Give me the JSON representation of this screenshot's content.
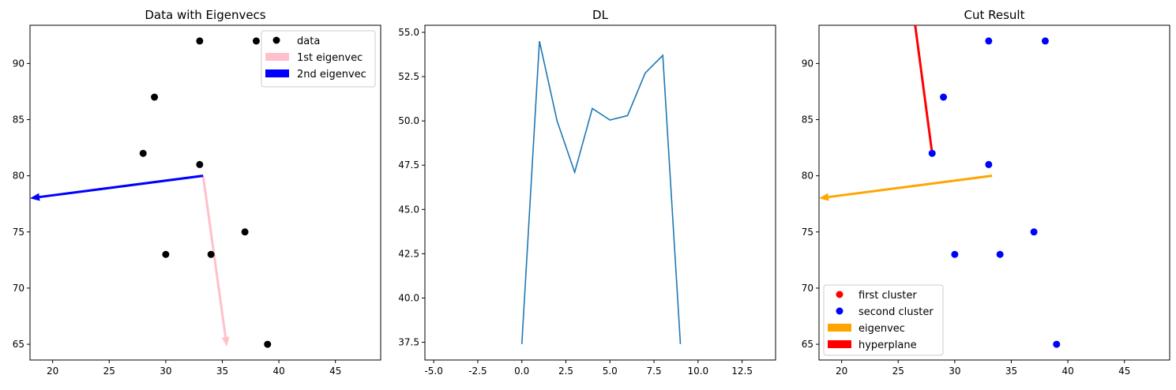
{
  "chart_data": [
    {
      "type": "scatter",
      "title": "Data with Eigenvecs",
      "xlim": [
        18,
        49
      ],
      "ylim": [
        63.6,
        93.4
      ],
      "xticks": [
        20,
        25,
        30,
        35,
        40,
        45
      ],
      "yticks": [
        65,
        70,
        75,
        80,
        85,
        90
      ],
      "series": [
        {
          "name": "data",
          "kind": "points",
          "color": "#000000",
          "points": [
            [
              33,
              92
            ],
            [
              38,
              92
            ],
            [
              29,
              87
            ],
            [
              28,
              82
            ],
            [
              33,
              81
            ],
            [
              37,
              75
            ],
            [
              30,
              73
            ],
            [
              34,
              73
            ],
            [
              39,
              65
            ]
          ]
        }
      ],
      "arrows": [
        {
          "name": "1st eigenvec",
          "color": "#ffc0cb",
          "from": [
            33.3,
            80
          ],
          "to": [
            35.4,
            64.8
          ]
        },
        {
          "name": "2nd eigenvec",
          "color": "#0000ff",
          "from": [
            33.3,
            80
          ],
          "to": [
            18,
            78
          ]
        }
      ],
      "legend": {
        "position": "upper-right",
        "entries": [
          {
            "label": "data",
            "kind": "dot",
            "color": "#000000"
          },
          {
            "label": "1st eigenvec",
            "kind": "patch",
            "color": "#ffc0cb"
          },
          {
            "label": "2nd eigenvec",
            "kind": "patch",
            "color": "#0000ff"
          }
        ]
      }
    },
    {
      "type": "line",
      "title": "DL",
      "xlim": [
        -5.5,
        14.4
      ],
      "ylim": [
        36.5,
        55.4
      ],
      "xticks": [
        "-5.0",
        "-2.5",
        "0.0",
        "2.5",
        "5.0",
        "7.5",
        "10.0",
        "12.5"
      ],
      "xtick_values": [
        -5,
        -2.5,
        0,
        2.5,
        5,
        7.5,
        10,
        12.5
      ],
      "yticks": [
        "37.5",
        "40.0",
        "42.5",
        "45.0",
        "47.5",
        "50.0",
        "52.5",
        "55.0"
      ],
      "ytick_values": [
        37.5,
        40,
        42.5,
        45,
        47.5,
        50,
        52.5,
        55
      ],
      "series": [
        {
          "color": "#1f77b4",
          "x": [
            0,
            1,
            2,
            3,
            4,
            5,
            6,
            7,
            8,
            9
          ],
          "y": [
            37.4,
            54.5,
            50.0,
            47.1,
            50.7,
            50.05,
            50.3,
            52.7,
            53.7,
            37.4
          ]
        }
      ]
    },
    {
      "type": "scatter",
      "title": "Cut Result",
      "xlim": [
        18,
        49
      ],
      "ylim": [
        63.6,
        93.4
      ],
      "xticks": [
        20,
        25,
        30,
        35,
        40,
        45
      ],
      "yticks": [
        65,
        70,
        75,
        80,
        85,
        90
      ],
      "series": [
        {
          "name": "first cluster",
          "kind": "points",
          "color": "#ff0000",
          "points": []
        },
        {
          "name": "second cluster",
          "kind": "points",
          "color": "#0000ff",
          "points": [
            [
              33,
              92
            ],
            [
              38,
              92
            ],
            [
              29,
              87
            ],
            [
              28,
              82
            ],
            [
              33,
              81
            ],
            [
              37,
              75
            ],
            [
              30,
              73
            ],
            [
              34,
              73
            ],
            [
              39,
              65
            ]
          ]
        }
      ],
      "arrows": [
        {
          "name": "eigenvec",
          "color": "#ffa500",
          "from": [
            33.3,
            80
          ],
          "to": [
            18,
            78
          ]
        }
      ],
      "lines": [
        {
          "name": "hyperplane",
          "color": "#ff0000",
          "from": [
            28,
            82
          ],
          "to": [
            26.5,
            93.4
          ]
        }
      ],
      "legend": {
        "position": "lower-left",
        "entries": [
          {
            "label": "first cluster",
            "kind": "dot",
            "color": "#ff0000"
          },
          {
            "label": "second cluster",
            "kind": "dot",
            "color": "#0000ff"
          },
          {
            "label": "eigenvec",
            "kind": "patch",
            "color": "#ffa500"
          },
          {
            "label": "hyperplane",
            "kind": "patch",
            "color": "#ff0000"
          }
        ]
      }
    }
  ]
}
